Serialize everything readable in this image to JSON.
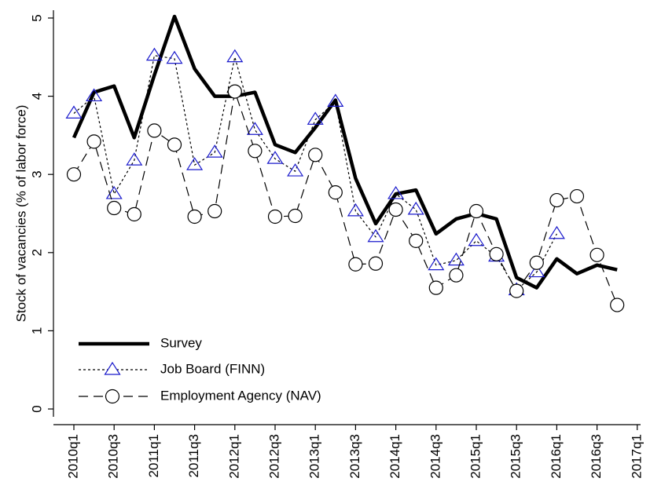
{
  "chart_data": {
    "type": "line",
    "y_label": "Stock of vacancies (% of labor force)",
    "categories": [
      "2010q1",
      null,
      "2010q3",
      null,
      "2011q1",
      null,
      "2011q3",
      null,
      "2012q1",
      null,
      "2012q3",
      null,
      "2013q1",
      null,
      "2013q3",
      null,
      "2014q1",
      null,
      "2014q3",
      null,
      "2015q1",
      null,
      "2015q3",
      null,
      "2016q1",
      null,
      "2016q3",
      null,
      "2017q1"
    ],
    "series": [
      {
        "name": "Survey",
        "color": "#000000",
        "line_style": "solid",
        "marker": "none",
        "values": [
          3.47,
          4.05,
          4.13,
          3.47,
          4.27,
          5.02,
          4.35,
          4.0,
          4.0,
          4.05,
          3.38,
          3.28,
          3.6,
          3.95,
          2.95,
          2.37,
          2.75,
          2.8,
          2.24,
          2.43,
          2.5,
          2.43,
          1.68,
          1.55,
          1.92,
          1.73,
          1.84,
          1.78,
          null
        ]
      },
      {
        "name": "Job Board (FINN)",
        "color": "#000000",
        "marker_color": "#1a1acc",
        "line_style": "dotted",
        "marker": "triangle",
        "values": [
          3.78,
          4.0,
          2.75,
          3.18,
          4.52,
          4.48,
          3.12,
          3.28,
          4.5,
          3.57,
          3.2,
          3.04,
          3.7,
          3.93,
          2.53,
          2.2,
          2.75,
          2.55,
          1.84,
          1.9,
          2.15,
          1.95,
          1.52,
          1.75,
          2.24,
          null,
          null,
          null,
          null
        ]
      },
      {
        "name": "Employment Agency (NAV)",
        "color": "#000000",
        "marker_color": "#000000",
        "line_style": "dashed",
        "marker": "circle",
        "values": [
          3.0,
          3.42,
          2.57,
          2.49,
          3.56,
          3.38,
          2.46,
          2.53,
          4.06,
          3.3,
          2.46,
          2.47,
          3.25,
          2.77,
          1.85,
          1.86,
          2.55,
          2.15,
          1.55,
          1.71,
          2.53,
          1.98,
          1.51,
          1.87,
          2.67,
          2.72,
          1.97,
          1.33,
          null
        ]
      }
    ],
    "ylim": [
      -0.1,
      5.1
    ],
    "yticks": [
      0,
      1,
      2,
      3,
      4,
      5
    ],
    "grid": false,
    "legend": "lower left"
  }
}
